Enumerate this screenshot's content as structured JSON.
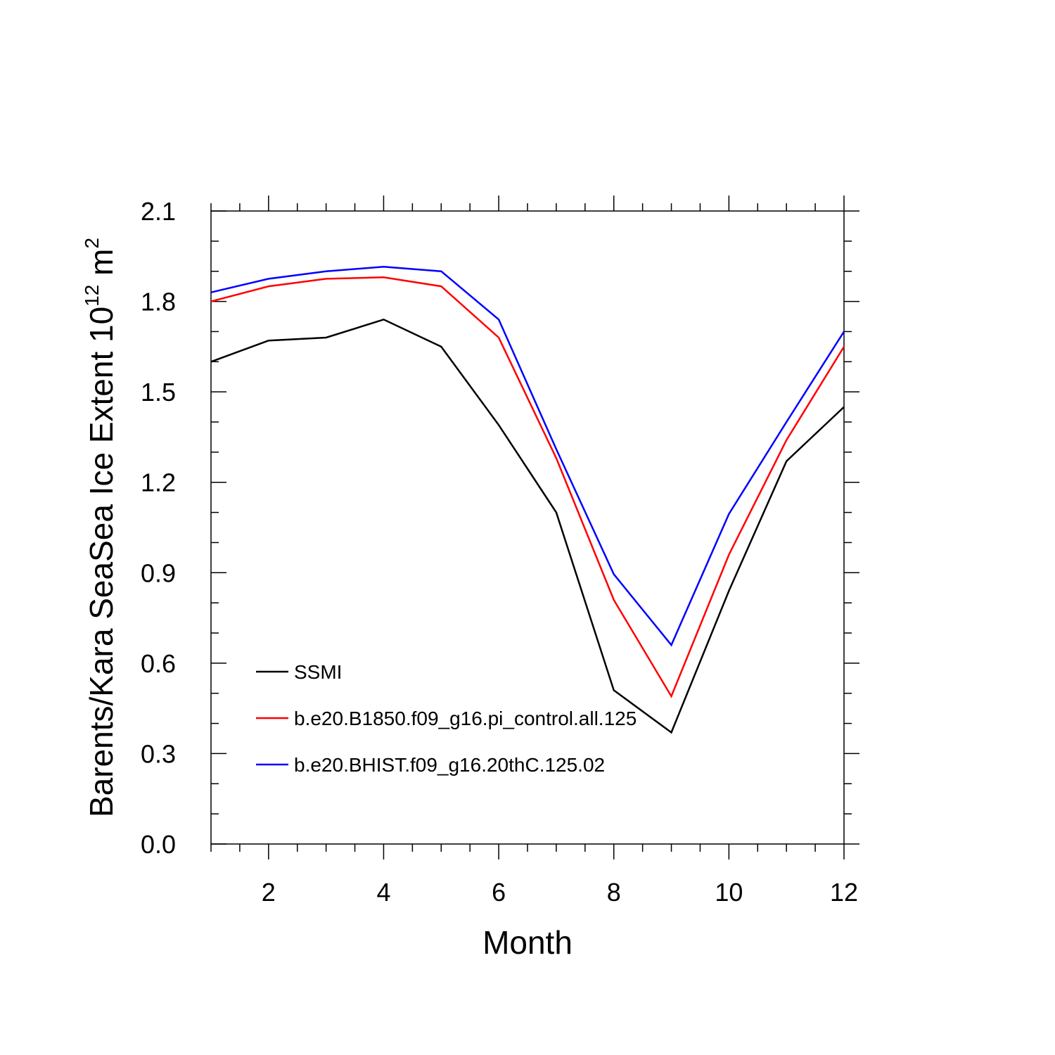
{
  "chart_data": {
    "type": "line",
    "title": "",
    "xlabel": "Month",
    "ylabel": {
      "main": "Barents/Kara SeaSea Ice Extent 10",
      "sup1": "12",
      "unit": " m",
      "sup2": "2"
    },
    "xlim": [
      1,
      12
    ],
    "ylim": [
      0.0,
      2.1
    ],
    "x": [
      1,
      2,
      3,
      4,
      5,
      6,
      7,
      8,
      9,
      10,
      11,
      12
    ],
    "xticks": [
      2,
      4,
      6,
      8,
      10,
      12
    ],
    "xtick_labels": [
      "2",
      "4",
      "6",
      "8",
      "10",
      "12"
    ],
    "yticks": [
      0.0,
      0.3,
      0.6,
      0.9,
      1.2,
      1.5,
      1.8,
      2.1
    ],
    "ytick_labels": [
      "0.0",
      "0.3",
      "0.6",
      "0.9",
      "1.2",
      "1.5",
      "1.8",
      "2.1"
    ],
    "legend_position": "bottom-left",
    "series": [
      {
        "name": "SSMI",
        "color": "#000000",
        "values": [
          1.6,
          1.67,
          1.68,
          1.74,
          1.65,
          1.39,
          1.1,
          0.51,
          0.37,
          0.84,
          1.27,
          1.45
        ]
      },
      {
        "name": "b.e20.B1850.f09_g16.pi_control.all.125",
        "color": "#ff0000",
        "values": [
          1.8,
          1.85,
          1.875,
          1.88,
          1.85,
          1.68,
          1.28,
          0.81,
          0.49,
          0.96,
          1.34,
          1.65
        ]
      },
      {
        "name": "b.e20.BHIST.f09_g16.20thC.125.02",
        "color": "#0000ff",
        "values": [
          1.83,
          1.875,
          1.9,
          1.915,
          1.9,
          1.74,
          1.31,
          0.895,
          0.66,
          1.095,
          1.4,
          1.7
        ]
      }
    ]
  }
}
